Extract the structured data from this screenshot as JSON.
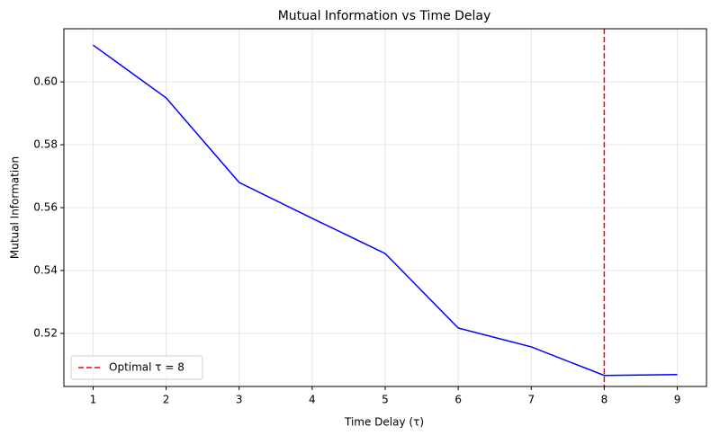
{
  "chart_data": {
    "type": "line",
    "title": "Mutual Information vs Time Delay",
    "x_label": "Time Delay (τ)",
    "y_label": "Mutual Information",
    "x": [
      1,
      2,
      3,
      4,
      5,
      6,
      7,
      8,
      9
    ],
    "series": [
      {
        "color": "#0000ff",
        "values": [
          0.6117,
          0.5949,
          0.568,
          0.5566,
          0.5454,
          0.5217,
          0.5157,
          0.5066,
          0.5069
        ]
      }
    ],
    "vline": {
      "x": 8,
      "label": "Optimal τ = 8",
      "color": "#ff0000"
    },
    "xlim": [
      0.6,
      9.4
    ],
    "xticks": [
      1,
      2,
      3,
      4,
      5,
      6,
      7,
      8,
      9
    ],
    "ylim": [
      0.5031,
      0.6169
    ],
    "yticks": [
      {
        "value": 0.52,
        "label": "0.52"
      },
      {
        "value": 0.54,
        "label": "0.54"
      },
      {
        "value": 0.56,
        "label": "0.56"
      },
      {
        "value": 0.58,
        "label": "0.58"
      },
      {
        "value": 0.6,
        "label": "0.60"
      }
    ],
    "grid": true,
    "legend": "lower left"
  }
}
